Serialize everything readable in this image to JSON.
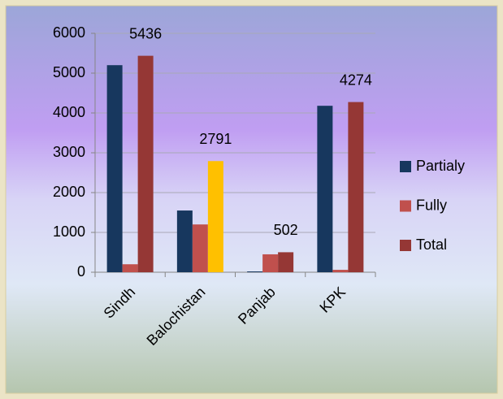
{
  "chart_data": {
    "type": "bar",
    "categories": [
      "Sindh",
      "Balochistan",
      "Panjab",
      "KPK"
    ],
    "series": [
      {
        "name": "Partialy",
        "color": "#17375e",
        "values": [
          5200,
          1550,
          20,
          4180
        ]
      },
      {
        "name": "Fully",
        "color": "#c0504d",
        "values": [
          200,
          1200,
          450,
          60
        ]
      },
      {
        "name": "Total",
        "color": "#953735",
        "point_colors": [
          "#953735",
          "#ffc000",
          "#953735",
          "#953735"
        ],
        "values": [
          5436,
          2791,
          502,
          4274
        ],
        "show_value_labels": true
      }
    ],
    "ylim": [
      0,
      6000
    ],
    "yticks": [
      0,
      1000,
      2000,
      3000,
      4000,
      5000,
      6000
    ],
    "grid": true,
    "legend": "right"
  }
}
